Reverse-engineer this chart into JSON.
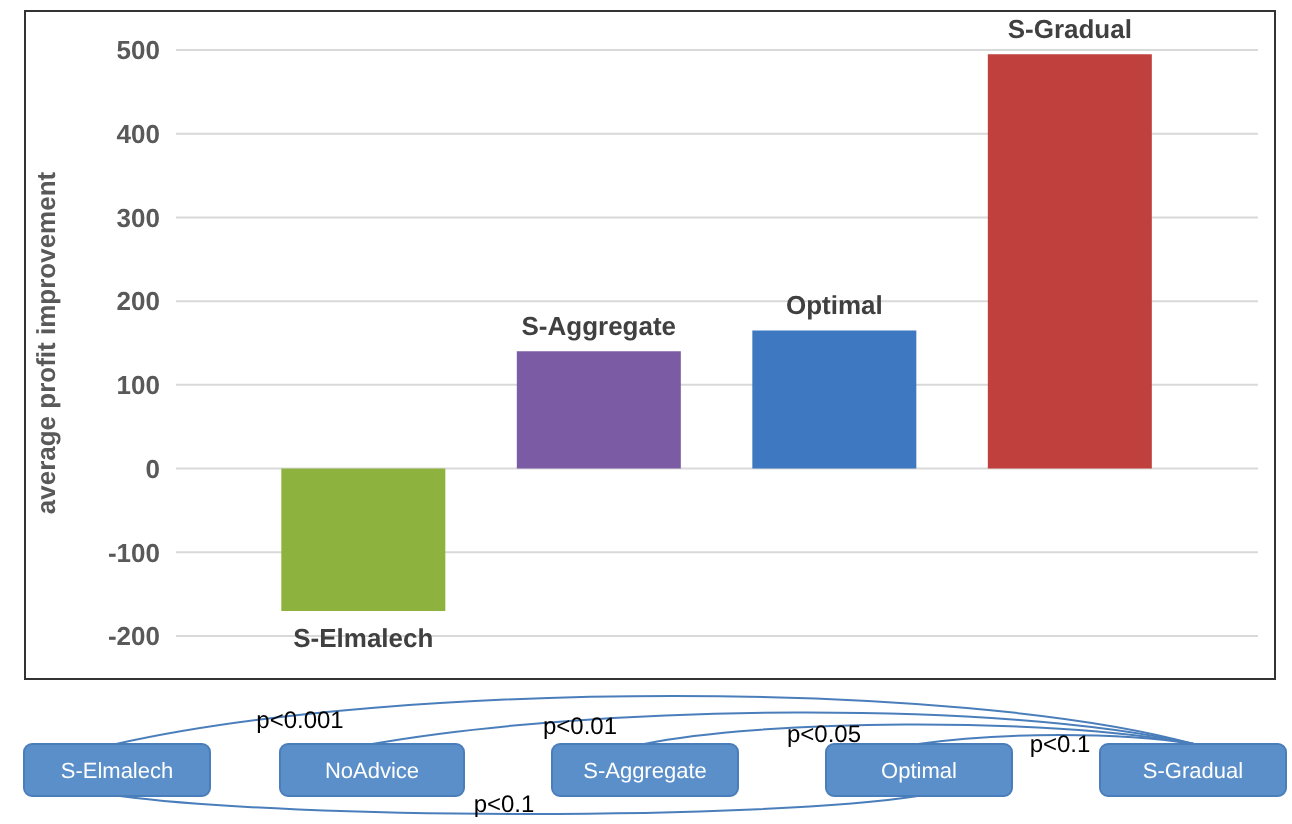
{
  "chart_data": {
    "type": "bar",
    "ylabel": "average profit improvement",
    "categories": [
      "S-Elmalech",
      "S-Aggregate",
      "Optimal",
      "S-Gradual"
    ],
    "values": [
      -170,
      140,
      165,
      495
    ],
    "colors": [
      "#8db33e",
      "#7b5ba3",
      "#3d78c1",
      "#c0403d"
    ],
    "ylim": [
      -200,
      500
    ],
    "yticks": [
      -200,
      -100,
      0,
      100,
      200,
      300,
      400,
      500
    ],
    "grid": "y",
    "annotations": [
      "S-Elmalech",
      "NoAdvice",
      "S-Aggregate",
      "Optimal",
      "S-Gradual",
      "p<0.001",
      "p<0.01",
      "p<0.05",
      "p<0.1",
      "p<0.1"
    ]
  }
}
